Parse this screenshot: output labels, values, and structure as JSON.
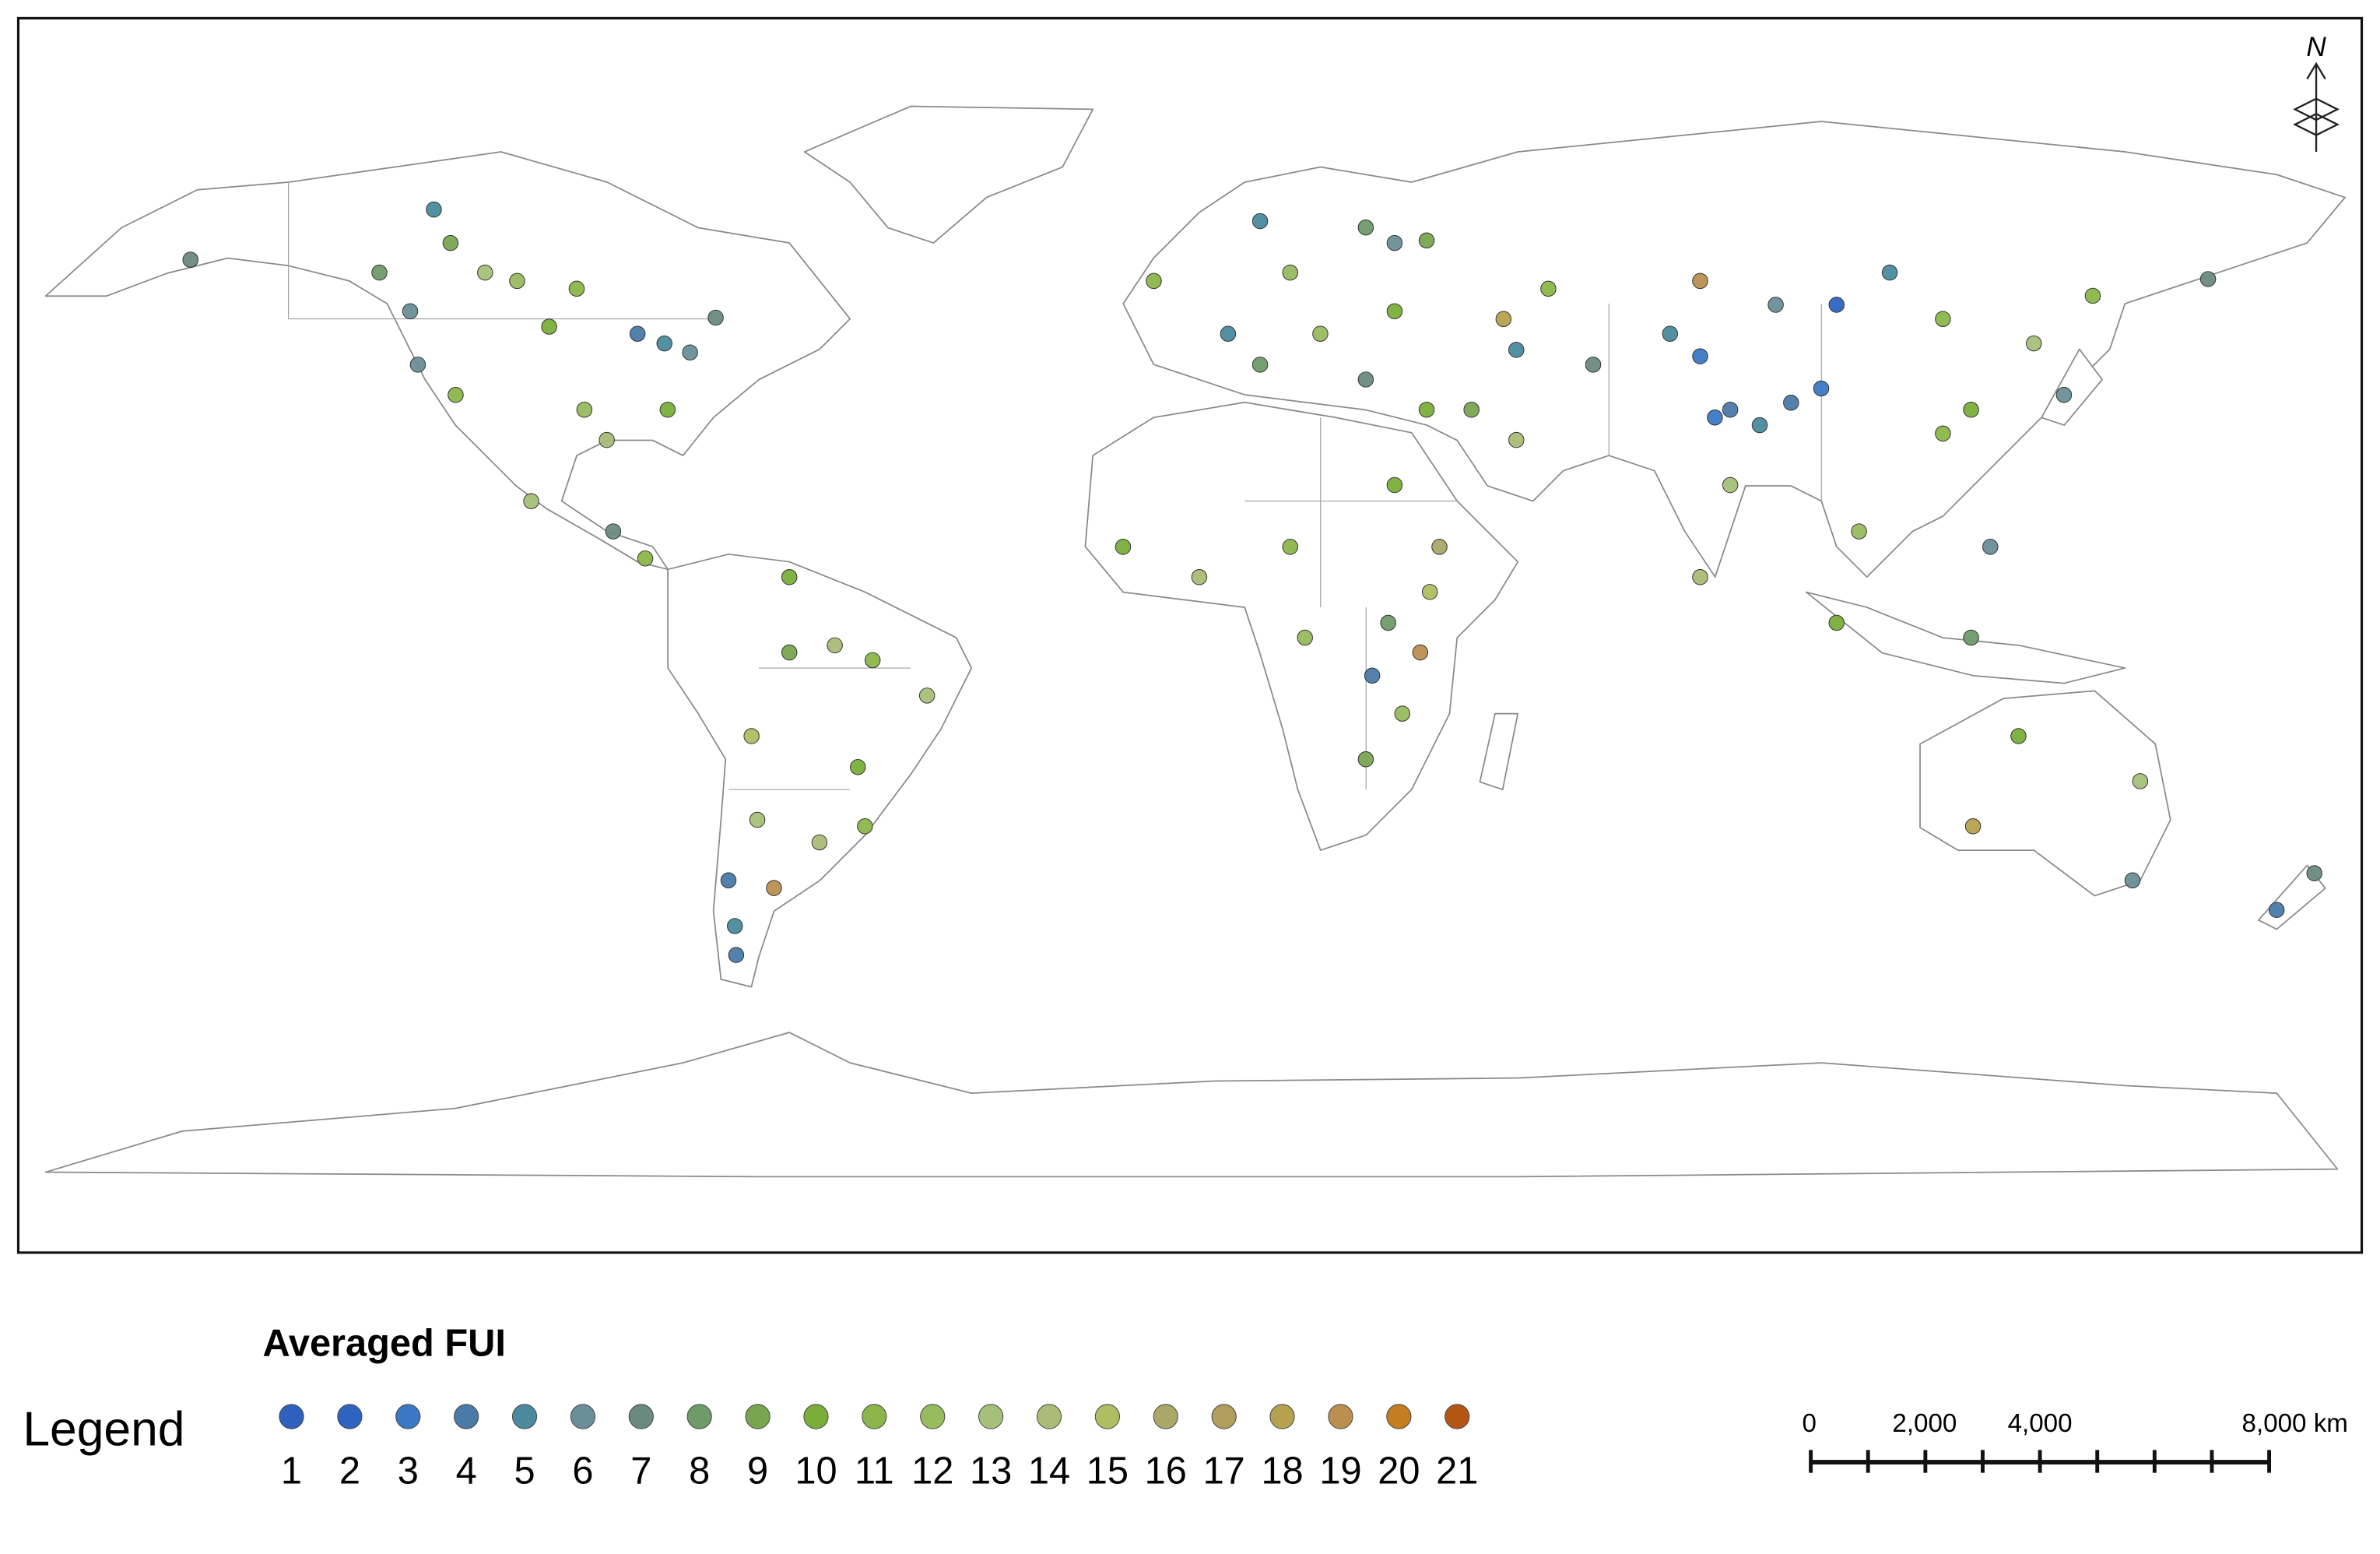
{
  "map": {
    "north_label": "N",
    "points": [
      {
        "lon": -116.4,
        "lat": 60.6,
        "fui": 9
      },
      {
        "lon": -87.2,
        "lat": 46.5,
        "fui": 4
      },
      {
        "lon": -83,
        "lat": 45,
        "fui": 5
      },
      {
        "lon": -79,
        "lat": 43.6,
        "fui": 6
      },
      {
        "lon": -96.7,
        "lat": 53.5,
        "fui": 11
      },
      {
        "lon": -106,
        "lat": 54.7,
        "fui": 12
      },
      {
        "lon": -122.7,
        "lat": 50,
        "fui": 6
      },
      {
        "lon": -119,
        "lat": 65.8,
        "fui": 5
      },
      {
        "lon": -157,
        "lat": 58,
        "fui": 7
      },
      {
        "lon": -101,
        "lat": 47.6,
        "fui": 10
      },
      {
        "lon": -82.5,
        "lat": 34.7,
        "fui": 10
      },
      {
        "lon": -92,
        "lat": 30,
        "fui": 14
      },
      {
        "lon": -115.6,
        "lat": 37,
        "fui": 11
      },
      {
        "lon": -121.5,
        "lat": 41.7,
        "fui": 6
      },
      {
        "lon": -95.5,
        "lat": 34.7,
        "fui": 12
      },
      {
        "lon": -75,
        "lat": 49,
        "fui": 7
      },
      {
        "lon": -111,
        "lat": 56,
        "fui": 13
      },
      {
        "lon": -127.5,
        "lat": 56,
        "fui": 8
      },
      {
        "lon": -86,
        "lat": 11.6,
        "fui": 11
      },
      {
        "lon": -91,
        "lat": 15.8,
        "fui": 7
      },
      {
        "lon": -103.8,
        "lat": 20.5,
        "fui": 13
      },
      {
        "lon": -63.5,
        "lat": 8.7,
        "fui": 10
      },
      {
        "lon": -56.4,
        "lat": -1.9,
        "fui": 14
      },
      {
        "lon": -63.5,
        "lat": -3,
        "fui": 9
      },
      {
        "lon": -50.5,
        "lat": -4.2,
        "fui": 11
      },
      {
        "lon": -42,
        "lat": -9.7,
        "fui": 13
      },
      {
        "lon": -69.4,
        "lat": -16,
        "fui": 15
      },
      {
        "lon": -52.8,
        "lat": -20.8,
        "fui": 10
      },
      {
        "lon": -51.7,
        "lat": -30,
        "fui": 11
      },
      {
        "lon": -68.5,
        "lat": -29,
        "fui": 13
      },
      {
        "lon": -73,
        "lat": -38.4,
        "fui": 4
      },
      {
        "lon": -72,
        "lat": -45.5,
        "fui": 5
      },
      {
        "lon": -71.8,
        "lat": -50,
        "fui": 4
      },
      {
        "lon": -65.9,
        "lat": -39.6,
        "fui": 19
      },
      {
        "lon": -58.8,
        "lat": -32.5,
        "fui": 14
      },
      {
        "lon": 10,
        "lat": 64,
        "fui": 5
      },
      {
        "lon": 26.5,
        "lat": 63,
        "fui": 8
      },
      {
        "lon": 31,
        "lat": 60.6,
        "fui": 6
      },
      {
        "lon": 36,
        "lat": 61,
        "fui": 9
      },
      {
        "lon": 14.7,
        "lat": 56,
        "fui": 12
      },
      {
        "lon": 5,
        "lat": 46.5,
        "fui": 5
      },
      {
        "lon": 10,
        "lat": 41.7,
        "fui": 8
      },
      {
        "lon": 19.4,
        "lat": 46.5,
        "fui": 12
      },
      {
        "lon": 26.5,
        "lat": 39.4,
        "fui": 7
      },
      {
        "lon": -6.6,
        "lat": 54.7,
        "fui": 11
      },
      {
        "lon": 31,
        "lat": 50,
        "fui": 10
      },
      {
        "lon": 48,
        "lat": 48.8,
        "fui": 18
      },
      {
        "lon": 50,
        "lat": 44,
        "fui": 5
      },
      {
        "lon": 55,
        "lat": 53.5,
        "fui": 11
      },
      {
        "lon": 62,
        "lat": 41.7,
        "fui": 7
      },
      {
        "lon": 43,
        "lat": 34.7,
        "fui": 9
      },
      {
        "lon": 50,
        "lat": 30,
        "fui": 14
      },
      {
        "lon": 36,
        "lat": 34.7,
        "fui": 10
      },
      {
        "lon": 74,
        "lat": 46.5,
        "fui": 5
      },
      {
        "lon": 78.7,
        "lat": 43,
        "fui": 3
      },
      {
        "lon": 83.4,
        "lat": 34.7,
        "fui": 4
      },
      {
        "lon": 88,
        "lat": 32.3,
        "fui": 5
      },
      {
        "lon": 81,
        "lat": 33.5,
        "fui": 3
      },
      {
        "lon": 92.9,
        "lat": 35.8,
        "fui": 4
      },
      {
        "lon": 97.6,
        "lat": 38,
        "fui": 3
      },
      {
        "lon": 100,
        "lat": 51,
        "fui": 2
      },
      {
        "lon": 108.3,
        "lat": 56,
        "fui": 5
      },
      {
        "lon": 78.7,
        "lat": 54.7,
        "fui": 19
      },
      {
        "lon": 90.5,
        "lat": 51,
        "fui": 6
      },
      {
        "lon": 116.6,
        "lat": 48.8,
        "fui": 11
      },
      {
        "lon": 130.8,
        "lat": 45,
        "fui": 13
      },
      {
        "lon": 116.6,
        "lat": 31,
        "fui": 11
      },
      {
        "lon": 121,
        "lat": 34.7,
        "fui": 10
      },
      {
        "lon": 103.5,
        "lat": 15.8,
        "fui": 12
      },
      {
        "lon": 83.4,
        "lat": 23,
        "fui": 13
      },
      {
        "lon": 78.7,
        "lat": 8.7,
        "fui": 14
      },
      {
        "lon": 100,
        "lat": 1.6,
        "fui": 10
      },
      {
        "lon": 121,
        "lat": -0.7,
        "fui": 8
      },
      {
        "lon": 124,
        "lat": 13.4,
        "fui": 6
      },
      {
        "lon": 140,
        "lat": 52.4,
        "fui": 11
      },
      {
        "lon": 135.5,
        "lat": 37,
        "fui": 6
      },
      {
        "lon": 158,
        "lat": 55,
        "fui": 7
      },
      {
        "lon": 0.5,
        "lat": 8.7,
        "fui": 14
      },
      {
        "lon": 14.7,
        "lat": 13.4,
        "fui": 11
      },
      {
        "lon": 31,
        "lat": 23,
        "fui": 10
      },
      {
        "lon": 38,
        "lat": 13.4,
        "fui": 16
      },
      {
        "lon": 36.5,
        "lat": 6.4,
        "fui": 15
      },
      {
        "lon": 30,
        "lat": 1.6,
        "fui": 8
      },
      {
        "lon": 27.5,
        "lat": -6.6,
        "fui": 4
      },
      {
        "lon": 32.2,
        "lat": -12.5,
        "fui": 12
      },
      {
        "lon": 26.5,
        "lat": -19.6,
        "fui": 9
      },
      {
        "lon": 35,
        "lat": -3,
        "fui": 19
      },
      {
        "lon": 17,
        "lat": -0.7,
        "fui": 12
      },
      {
        "lon": -11.4,
        "lat": 13.4,
        "fui": 10
      },
      {
        "lon": 128.4,
        "lat": -16,
        "fui": 10
      },
      {
        "lon": 146.2,
        "lat": -38.4,
        "fui": 6
      },
      {
        "lon": 168.7,
        "lat": -43,
        "fui": 4
      },
      {
        "lon": 174.6,
        "lat": -37.3,
        "fui": 7
      },
      {
        "lon": 147.4,
        "lat": -23,
        "fui": 13
      },
      {
        "lon": 121.3,
        "lat": -30,
        "fui": 18
      }
    ]
  },
  "legend": {
    "label": "Legend",
    "title": "Averaged FUI",
    "classes": [
      1,
      2,
      3,
      4,
      5,
      6,
      7,
      8,
      9,
      10,
      11,
      12,
      13,
      14,
      15,
      16,
      17,
      18,
      19,
      20,
      21
    ],
    "colors": [
      "#2f5fbf",
      "#2f63c2",
      "#3b78c4",
      "#4a7aa8",
      "#4a8a9c",
      "#6a8f98",
      "#6a8a7e",
      "#6f9a6a",
      "#79a450",
      "#7aae3a",
      "#8cb64a",
      "#98bb5e",
      "#a6c07a",
      "#aabc76",
      "#afbe62",
      "#aaa869",
      "#b09e5d",
      "#b6a14e",
      "#bb8f4f",
      "#c37e20",
      "#b55512"
    ]
  },
  "scale_bar": {
    "labels": [
      "0",
      "2,000",
      "4,000",
      "8,000 km"
    ]
  }
}
